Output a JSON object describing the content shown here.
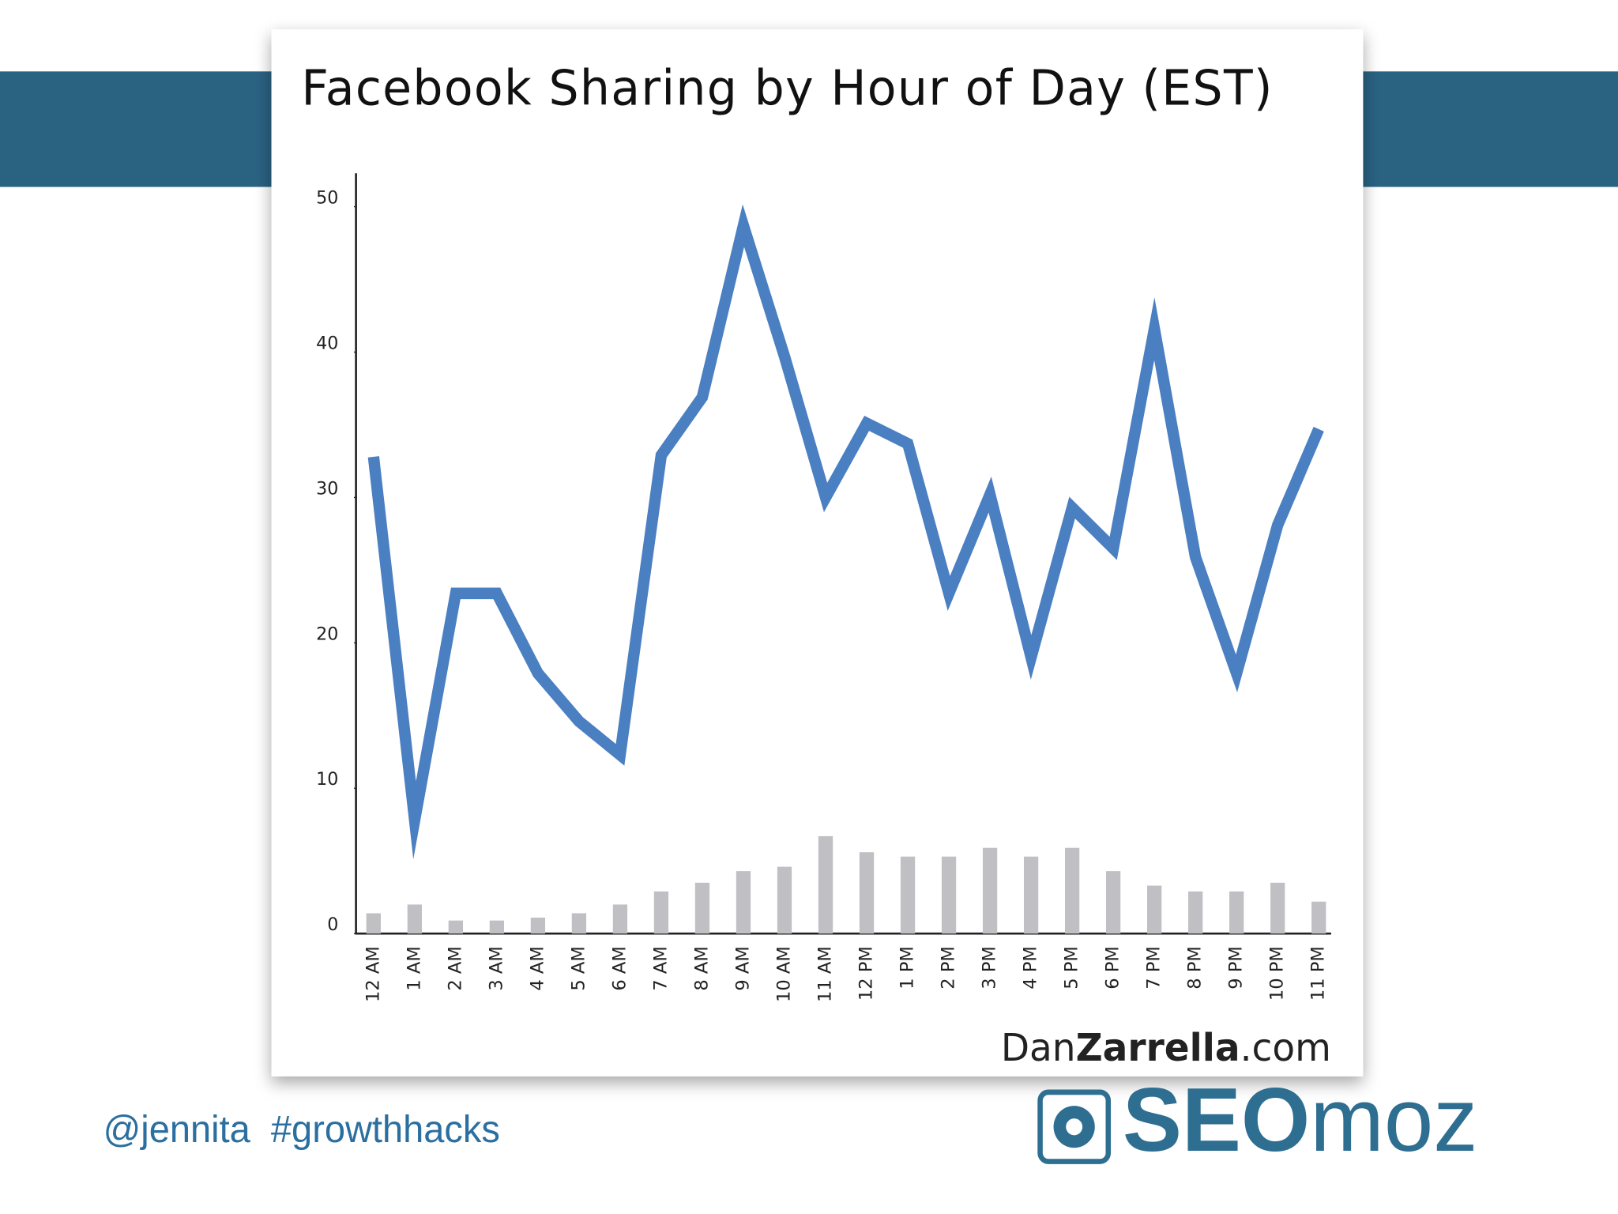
{
  "chart_data": {
    "type": "line",
    "title": "Facebook Sharing by Hour of Day (EST)",
    "categories": [
      "12 AM",
      "1 AM",
      "2 AM",
      "3 AM",
      "4 AM",
      "5 AM",
      "6 AM",
      "7 AM",
      "8 AM",
      "9 AM",
      "10 AM",
      "11 AM",
      "12 PM",
      "1 PM",
      "2 PM",
      "3 PM",
      "4 PM",
      "5 PM",
      "6 PM",
      "7 PM",
      "8 PM",
      "9 PM",
      "10 PM",
      "11 PM"
    ],
    "series": [
      {
        "type": "line",
        "color": "#4a7fc1",
        "values": [
          32.8,
          7.8,
          23.4,
          23.4,
          17.9,
          14.6,
          12.3,
          32.9,
          36.9,
          48.7,
          39.7,
          30.0,
          35.1,
          33.7,
          23.4,
          30.2,
          19.0,
          29.3,
          26.5,
          41.6,
          25.9,
          17.9,
          28.1,
          34.7
        ]
      },
      {
        "type": "bar",
        "color": "#c0bfc4",
        "values": [
          1.4,
          2.0,
          0.9,
          0.9,
          1.1,
          1.4,
          2.0,
          2.9,
          3.5,
          4.3,
          4.6,
          6.7,
          5.6,
          5.3,
          5.3,
          5.9,
          5.3,
          5.9,
          4.3,
          3.3,
          2.9,
          2.9,
          3.5,
          2.2
        ]
      }
    ],
    "ylim": [
      0,
      52.3
    ],
    "yticks": [
      0,
      10,
      20,
      30,
      40,
      50
    ],
    "grid": false,
    "source": [
      "Dan",
      "Zarrella",
      ".com"
    ]
  },
  "slide": {
    "caption": "@jennita  #growthhacks",
    "logo": [
      "SEO",
      "moz"
    ]
  }
}
